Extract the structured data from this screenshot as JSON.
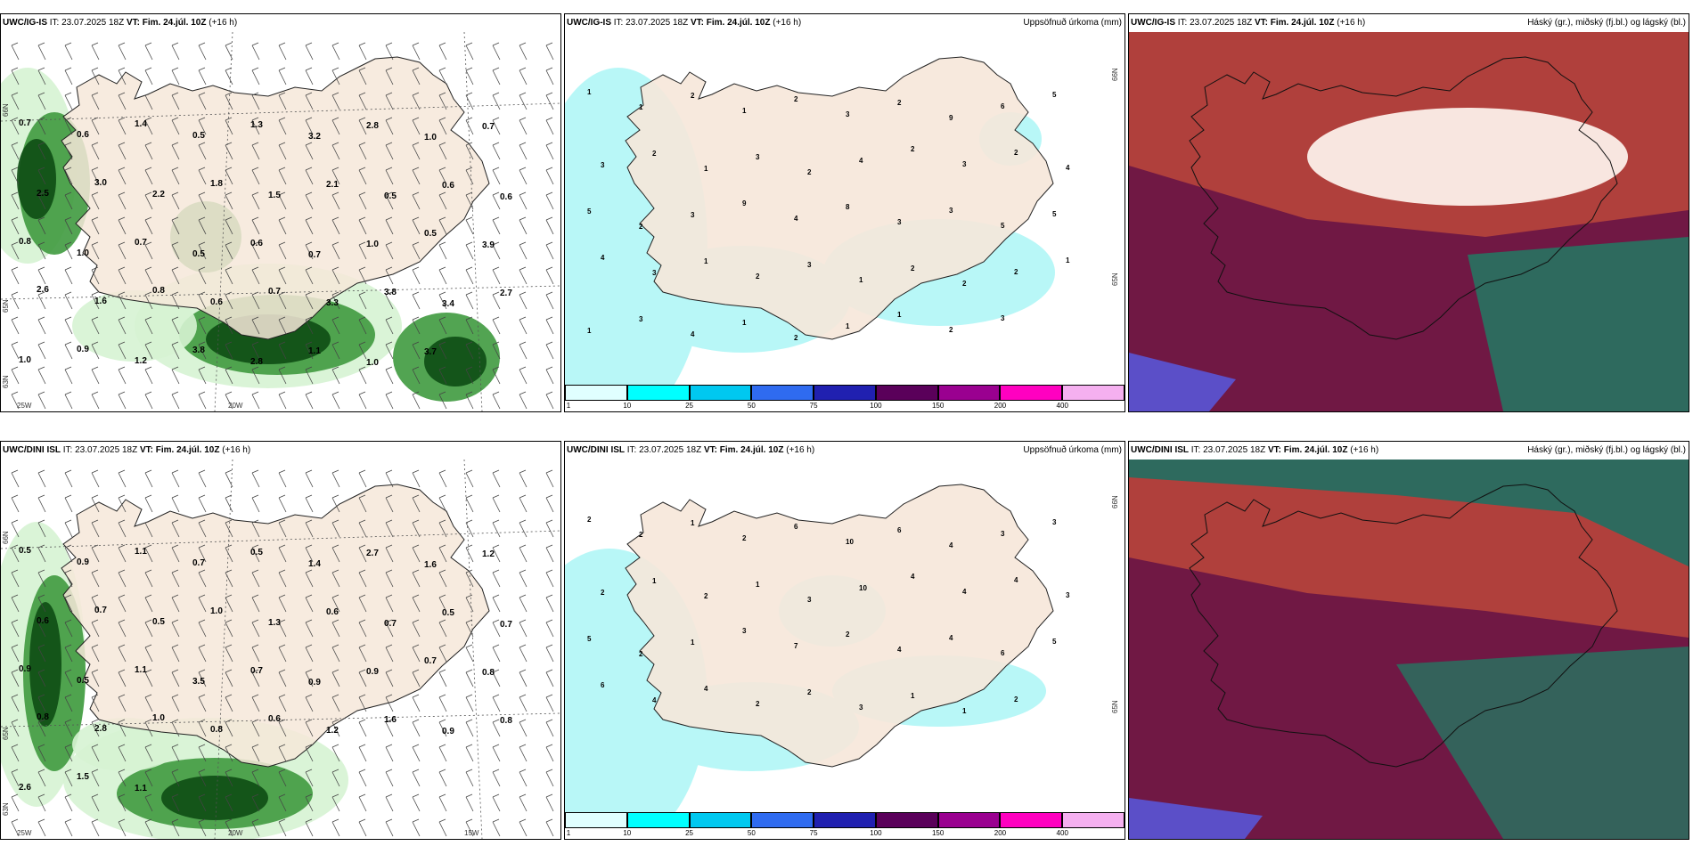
{
  "rows": [
    {
      "model": "UWC/IG-IS",
      "wind_panel": {
        "model": "UWC/IG-IS",
        "it_label": "IT:",
        "it": "23.07.2025 18Z",
        "vt_label": "VT:",
        "vt": "Fim. 24.júl. 10Z",
        "lead": "(+16 h)",
        "labels": [
          "0.7",
          "0.6",
          "1.4",
          "0.5",
          "1.3",
          "3.2",
          "2.8",
          "1.0",
          "0.7",
          "2.5",
          "3.0",
          "2.2",
          "1.8",
          "1.5",
          "2.1",
          "0.5",
          "0.6",
          "0.6",
          "0.8",
          "1.0",
          "0.7",
          "0.5",
          "0.6",
          "0.7",
          "1.0",
          "0.5",
          "3.9",
          "2.6",
          "1.6",
          "0.8",
          "0.6",
          "0.7",
          "3.3",
          "3.8",
          "3.4",
          "2.7",
          "1.0",
          "0.9",
          "1.2",
          "3.8",
          "2.8",
          "1.1",
          "1.0",
          "3.7"
        ],
        "lat_labels": [
          "66N",
          "65N",
          "63N"
        ],
        "lon_labels": [
          "25W",
          "20W"
        ]
      },
      "precip_panel": {
        "model": "UWC/IG-IS",
        "it_label": "IT:",
        "it": "23.07.2025 18Z",
        "vt_label": "VT:",
        "vt": "Fim. 24.júl. 10Z",
        "lead": "(+16 h)",
        "title": "Uppsöfnuð úrkoma (mm)",
        "labels": [
          "1",
          "1",
          "2",
          "1",
          "2",
          "3",
          "2",
          "9",
          "6",
          "5",
          "3",
          "2",
          "1",
          "3",
          "2",
          "4",
          "2",
          "3",
          "2",
          "4",
          "5",
          "2",
          "3",
          "9",
          "4",
          "8",
          "3",
          "3",
          "5",
          "5",
          "4",
          "3",
          "1",
          "2",
          "3",
          "1",
          "2",
          "2",
          "2",
          "1",
          "1",
          "3",
          "4",
          "1",
          "2",
          "1",
          "1",
          "2",
          "3"
        ],
        "lat_labels": [
          "66N",
          "65N"
        ]
      },
      "cloud_panel": {
        "model": "UWC/IG-IS",
        "it_label": "IT:",
        "it": "23.07.2025 18Z",
        "vt_label": "VT:",
        "vt": "Fim. 24.júl. 10Z",
        "lead": "(+16 h)",
        "title": "Háský (gr.), miðský (fj.bl.) og lágský (bl.)"
      }
    },
    {
      "model": "UWC/DINI ISL",
      "wind_panel": {
        "model": "UWC/DINI ISL",
        "it_label": "IT:",
        "it": "23.07.2025 18Z",
        "vt_label": "VT:",
        "vt": "Fim. 24.júl. 10Z",
        "lead": "(+16 h)",
        "labels": [
          "0.5",
          "0.9",
          "1.1",
          "0.7",
          "0.5",
          "1.4",
          "2.7",
          "1.6",
          "1.2",
          "0.6",
          "0.7",
          "0.5",
          "1.0",
          "1.3",
          "0.6",
          "0.7",
          "0.5",
          "0.7",
          "0.9",
          "0.5",
          "1.1",
          "3.5",
          "0.7",
          "0.9",
          "0.9",
          "0.7",
          "0.8",
          "0.8",
          "2.8",
          "1.0",
          "0.8",
          "0.6",
          "1.2",
          "1.6",
          "0.9",
          "0.8",
          "2.6",
          "1.5",
          "1.1"
        ],
        "lat_labels": [
          "66N",
          "65N",
          "63N"
        ],
        "lon_labels": [
          "25W",
          "20W",
          "15W"
        ]
      },
      "precip_panel": {
        "model": "UWC/DINI ISL",
        "it_label": "IT:",
        "it": "23.07.2025 18Z",
        "vt_label": "VT:",
        "vt": "Fim. 24.júl. 10Z",
        "lead": "(+16 h)",
        "title": "Uppsöfnuð úrkoma (mm)",
        "labels": [
          "2",
          "2",
          "1",
          "2",
          "6",
          "10",
          "6",
          "4",
          "3",
          "3",
          "2",
          "1",
          "2",
          "1",
          "3",
          "10",
          "4",
          "4",
          "4",
          "3",
          "5",
          "2",
          "1",
          "3",
          "7",
          "2",
          "4",
          "4",
          "6",
          "5",
          "6",
          "4",
          "4",
          "2",
          "2",
          "3",
          "1",
          "1",
          "2"
        ],
        "lat_labels": [
          "66N",
          "65N"
        ]
      },
      "cloud_panel": {
        "model": "UWC/DINI ISL",
        "it_label": "IT:",
        "it": "23.07.2025 18Z",
        "vt_label": "VT:",
        "vt": "Fim. 24.júl. 10Z",
        "lead": "(+16 h)",
        "title": "Háský (gr.), miðský (fj.bl.) og lágský (bl.)"
      }
    }
  ],
  "precip_colorbar": {
    "ticks": [
      "1",
      "10",
      "25",
      "50",
      "75",
      "100",
      "150",
      "200",
      "400"
    ],
    "colors": [
      "#e0ffff",
      "#00ffff",
      "#00c8f0",
      "#2f6bf0",
      "#2020b0",
      "#5a005a",
      "#9a0090",
      "#ff00c0",
      "#f5b0f0"
    ]
  },
  "colors": {
    "land": "#f6e7d9",
    "sea_light_green": "#d6f3d3",
    "green_mid": "#3f9a3f",
    "green_dark": "#0d4d14",
    "precip_cyan": "#b8f7f7",
    "cloud_high_red": "#b0403c",
    "cloud_mid_purple": "#701844",
    "cloud_low_teal": "#2e6a5e"
  }
}
